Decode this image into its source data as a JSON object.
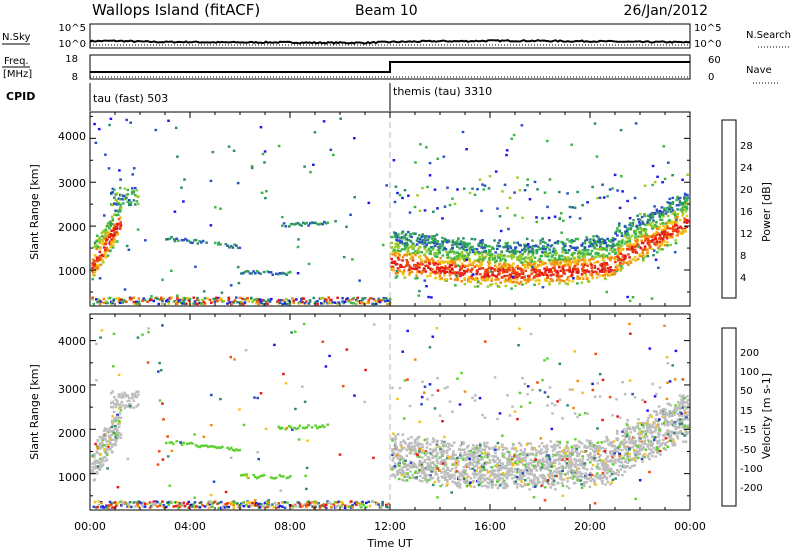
{
  "header": {
    "station": "Wallops Island (fitACF)",
    "beam": "Beam 10",
    "date": "26/Jan/2012"
  },
  "status_panels": {
    "nsky_label": "N.Sky",
    "nsearch_label": "N.Search",
    "freq_label": "Freq.",
    "freq_unit": "[MHz]",
    "nave_label": "Nave",
    "cpid_label": "CPID",
    "noise_left_ticks": [
      "10^5",
      "10^0"
    ],
    "noise_right_ticks": [
      "10^5",
      "10^0"
    ],
    "freq_left_ticks": [
      "18",
      "8"
    ],
    "freq_right_ticks": [
      "60",
      "0"
    ],
    "cpid_1": "tau (fast) 503",
    "cpid_2": "themis (tau) 3310"
  },
  "axes": {
    "xlabel": "Time UT",
    "xticks": [
      "00:00",
      "04:00",
      "08:00",
      "12:00",
      "16:00",
      "20:00",
      "00:00"
    ],
    "ylabel": "Slant Range [km]",
    "yticks": [
      "1000",
      "2000",
      "3000",
      "4000"
    ]
  },
  "power_colorbar": {
    "label": "Power [dB]",
    "ticks": [
      "4",
      "8",
      "12",
      "16",
      "20",
      "24",
      "28"
    ],
    "colors": [
      "#1a1ae6",
      "#2a4fc4",
      "#2e8a6e",
      "#37b44a",
      "#9ccc2c",
      "#f2c418",
      "#f28a10",
      "#ef4a0a",
      "#e31a1a"
    ]
  },
  "velocity_colorbar": {
    "label": "Velocity [m s-1]",
    "ticks": [
      "200",
      "100",
      "50",
      "15",
      "-15",
      "-50",
      "-100",
      "-200"
    ],
    "colors": [
      "#1a1ae6",
      "#2a4fc4",
      "#2e8a6e",
      "#5fd030",
      "#bdbdbd",
      "#f2c418",
      "#f28a10",
      "#ef4a0a",
      "#e31a1a"
    ]
  },
  "chart_data": [
    {
      "type": "line",
      "name": "N.Sky",
      "x_hours": [
        0,
        1,
        2,
        3,
        4,
        5,
        6,
        7,
        8,
        9,
        10,
        11,
        12,
        13,
        14,
        15,
        16,
        17,
        18,
        19,
        20,
        21,
        22,
        23,
        24
      ],
      "values_log10": [
        1.2,
        1.3,
        1.1,
        1.0,
        1.0,
        0.9,
        0.9,
        0.9,
        0.9,
        0.8,
        0.8,
        0.8,
        1.0,
        1.1,
        1.2,
        1.2,
        1.3,
        1.3,
        1.3,
        1.2,
        1.2,
        1.1,
        1.0,
        1.0,
        0.9
      ],
      "ylim": [
        0,
        5
      ]
    },
    {
      "type": "line",
      "name": "Freq.",
      "x_hours": [
        0,
        12,
        12,
        24
      ],
      "values": [
        10.5,
        10.5,
        15.5,
        15.5
      ],
      "ylim": [
        8,
        18
      ]
    },
    {
      "type": "heatmap",
      "name": "Power",
      "x_range_hours": [
        0,
        24
      ],
      "y_range_km": [
        180,
        4600
      ],
      "color_range_db": [
        0,
        30
      ]
    },
    {
      "type": "heatmap",
      "name": "Velocity",
      "x_range_hours": [
        0,
        24
      ],
      "y_range_km": [
        180,
        4600
      ],
      "color_range_ms": [
        -250,
        250
      ]
    }
  ]
}
